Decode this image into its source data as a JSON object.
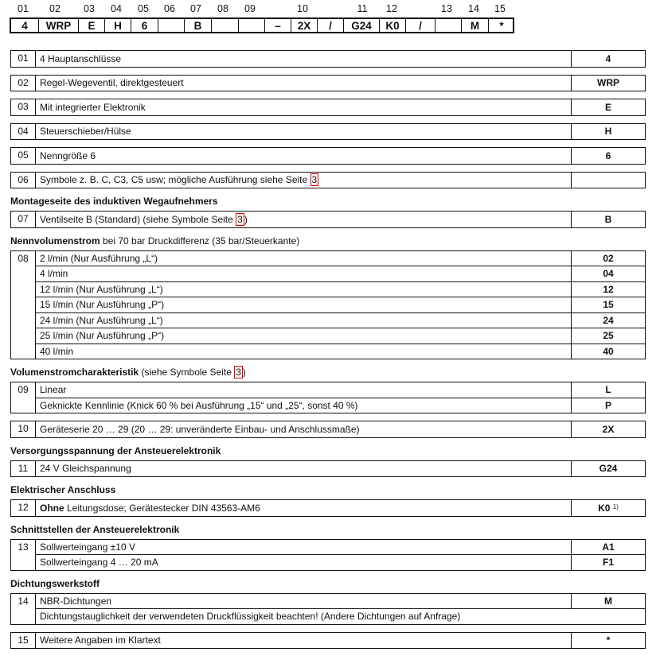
{
  "code": {
    "positions": [
      "01",
      "02",
      "03",
      "04",
      "05",
      "06",
      "07",
      "08",
      "09",
      "10",
      "11",
      "12",
      "13",
      "14",
      "15"
    ],
    "cells": [
      "4",
      "WRP",
      "E",
      "H",
      "6",
      "",
      "B",
      "",
      "",
      "–",
      "2X",
      "/",
      "G24",
      "K0",
      "/",
      "",
      "M",
      "*"
    ]
  },
  "groups": [
    {
      "rows": [
        {
          "num": "01",
          "text": "4 Hauptanschlüsse",
          "code": "4"
        }
      ]
    },
    {
      "rows": [
        {
          "num": "02",
          "text": "Regel-Wegeventil, direktgesteuert",
          "code": "WRP"
        }
      ]
    },
    {
      "rows": [
        {
          "num": "03",
          "text": "Mit integrierter Elektronik",
          "code": "E"
        }
      ]
    },
    {
      "rows": [
        {
          "num": "04",
          "text": "Steuerschieber/Hülse",
          "code": "H"
        }
      ]
    },
    {
      "rows": [
        {
          "num": "05",
          "text": "Nenngröße 6",
          "code": "6"
        }
      ]
    },
    {
      "rows": [
        {
          "num": "06",
          "text": "Symbole z. B. C, C3, C5 usw; mögliche Ausführung siehe Seite ",
          "ref": "3",
          "code": ""
        }
      ]
    },
    {
      "heading_bold": "Montageseite des induktiven Wegaufnehmers",
      "heading_rest": "",
      "rows": [
        {
          "num": "07",
          "text": "Ventilseite B (Standard) (siehe Symbole Seite ",
          "ref": "3",
          "text_after": ")",
          "code": "B"
        }
      ]
    },
    {
      "heading_bold": "Nennvolumenstrom",
      "heading_rest": " bei 70 bar Druckdifferenz (35 bar/Steuerkante)",
      "rows": [
        {
          "num": "08",
          "text": "2 l/min (Nur Ausführung „L“)",
          "code": "02"
        },
        {
          "text": "4 l/min",
          "code": "04"
        },
        {
          "text": "12 l/min (Nur Ausführung „L“)",
          "code": "12"
        },
        {
          "text": "15 l/min (Nur Ausführung „P“)",
          "code": "15"
        },
        {
          "text": "24 l/min (Nur Ausführung „L“)",
          "code": "24"
        },
        {
          "text": "25 l/min (Nur Ausführung „P“)",
          "code": "25"
        },
        {
          "text": "40 l/min",
          "code": "40"
        }
      ]
    },
    {
      "heading_bold": "Volumenstromcharakteristik",
      "heading_rest": " (siehe Symbole Seite ",
      "heading_ref": "3",
      "heading_after": ")",
      "rows": [
        {
          "num": "09",
          "text": "Linear",
          "code": "L"
        },
        {
          "text": "Geknickte Kennlinie (Knick 60 % bei Ausführung „15“ und „25“, sonst 40 %)",
          "code": "P"
        }
      ]
    },
    {
      "rows": [
        {
          "num": "10",
          "text": "Geräteserie 20 … 29 (20 … 29: unveränderte Einbau- und Anschlussmaße)",
          "code": "2X"
        }
      ]
    },
    {
      "heading_bold": "Versorgungsspannung der Ansteuerelektronik",
      "heading_rest": "",
      "rows": [
        {
          "num": "11",
          "text": "24 V Gleichspannung",
          "code": "G24"
        }
      ]
    },
    {
      "heading_bold": "Elektrischer Anschluss",
      "heading_rest": "",
      "rows": [
        {
          "num": "12",
          "text_bold": "Ohne",
          "text": " Leitungsdose; Gerätestecker DIN 43563-AM6",
          "code": "K0",
          "code_note": "1)"
        }
      ]
    },
    {
      "heading_bold": "Schnittstellen der Ansteuerelektronik",
      "heading_rest": "",
      "rows": [
        {
          "num": "13",
          "text": "Sollwerteingang ±10 V",
          "code": "A1"
        },
        {
          "text": "Sollwerteingang 4 … 20 mA",
          "code": "F1"
        }
      ]
    },
    {
      "heading_bold": "Dichtungswerkstoff",
      "heading_rest": "",
      "rows": [
        {
          "num": "14",
          "text": "NBR-Dichtungen",
          "code": "M"
        },
        {
          "text": "Dichtungstauglichkeit der verwendeten Druckflüssigkeit beachten! (Andere Dichtungen auf Anfrage)",
          "span": true
        }
      ]
    },
    {
      "rows": [
        {
          "num": "15",
          "text": "Weitere Angaben im Klartext",
          "code": "*"
        }
      ]
    }
  ]
}
